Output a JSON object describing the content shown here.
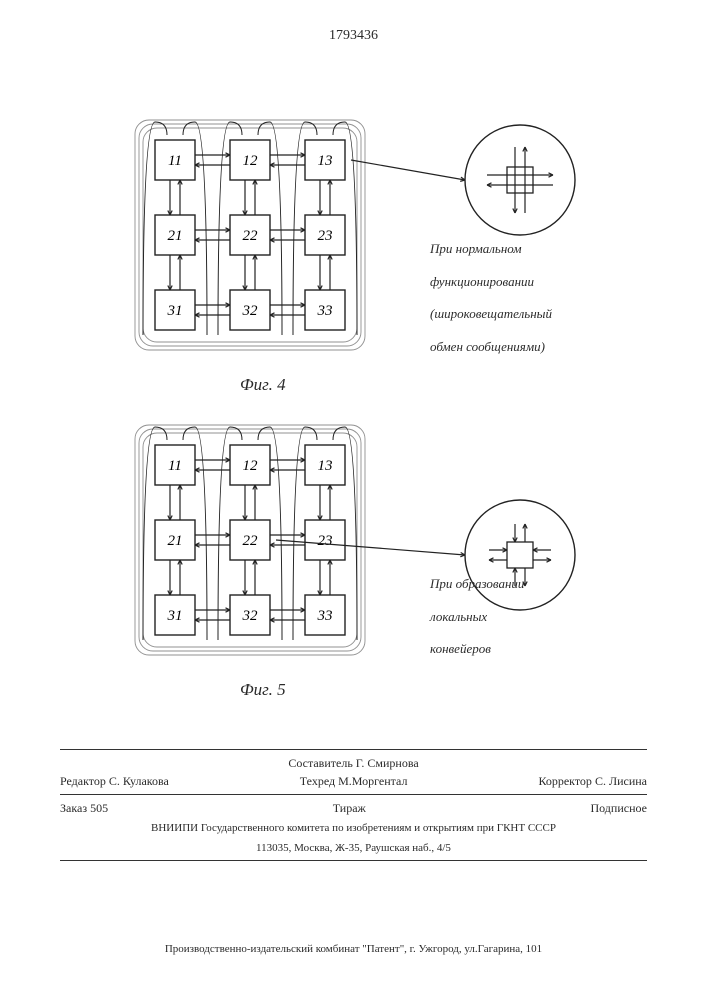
{
  "document_number": "1793436",
  "fig4": {
    "label": "Фиг. 4",
    "nodes": [
      [
        "11",
        "12",
        "13"
      ],
      [
        "21",
        "22",
        "23"
      ],
      [
        "31",
        "32",
        "33"
      ]
    ],
    "caption_lines": [
      "При нормальном",
      "функционировании",
      "(широковещательный",
      "обмен сообщениями)"
    ]
  },
  "fig5": {
    "label": "Фиг. 5",
    "nodes": [
      [
        "11",
        "12",
        "13"
      ],
      [
        "21",
        "22",
        "23"
      ],
      [
        "31",
        "32",
        "33"
      ]
    ],
    "caption_lines": [
      "При образовании",
      "локальных",
      "конвейеров"
    ]
  },
  "credits": {
    "editor_label": "Редактор",
    "editor": "С. Кулакова",
    "compiler_label": "Составитель",
    "compiler": "Г. Смирнова",
    "tech_label": "Техред",
    "tech": "М.Моргентал",
    "corrector_label": "Корректор",
    "corrector": "С. Лисина"
  },
  "order": {
    "zakaz_label": "Заказ",
    "zakaz": "505",
    "tirazh_label": "Тираж",
    "podpis": "Подписное"
  },
  "address1": "ВНИИПИ Государственного комитета по изобретениям и открытиям при ГКНТ СССР",
  "address2": "113035, Москва, Ж-35, Раушская наб., 4/5",
  "publisher": "Производственно-издательский комбинат \"Патент\", г. Ужгород, ул.Гагарина, 101",
  "style": {
    "node_size": 40,
    "node_stroke": "#222",
    "node_font_size": 15,
    "circle_stroke": "#222",
    "arrow_stroke": "#222"
  }
}
